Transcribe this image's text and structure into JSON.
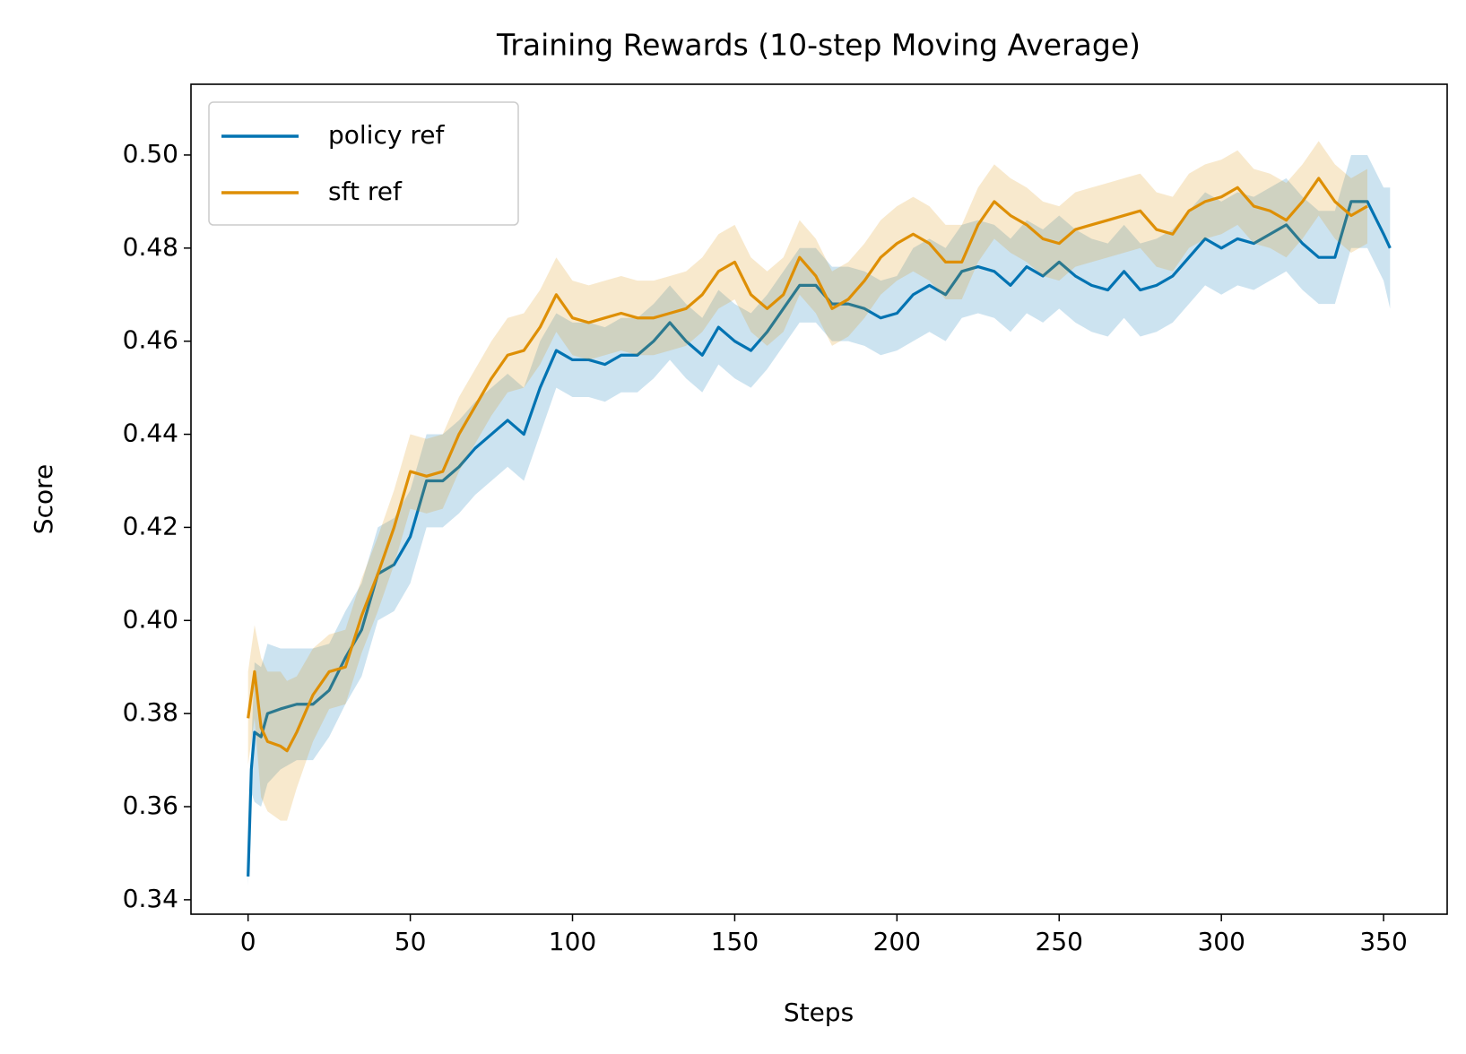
{
  "chart_data": {
    "type": "line",
    "title": "Training Rewards (10-step Moving Average)",
    "xlabel": "Steps",
    "ylabel": "Score",
    "xlim": [
      -17.6,
      369.6
    ],
    "ylim": [
      0.3369,
      0.5152
    ],
    "xticks": [
      0,
      50,
      100,
      150,
      200,
      250,
      300,
      350
    ],
    "yticks": [
      {
        "value": 0.34,
        "label": "0.34"
      },
      {
        "value": 0.36,
        "label": "0.36"
      },
      {
        "value": 0.38,
        "label": "0.38"
      },
      {
        "value": 0.4,
        "label": "0.40"
      },
      {
        "value": 0.42,
        "label": "0.42"
      },
      {
        "value": 0.44,
        "label": "0.44"
      },
      {
        "value": 0.46,
        "label": "0.46"
      },
      {
        "value": 0.48,
        "label": "0.48"
      },
      {
        "value": 0.5,
        "label": "0.50"
      }
    ],
    "grid": false,
    "legend": "upper left",
    "series": [
      {
        "name": "policy ref",
        "color": "#0173b2",
        "x": [
          0,
          1,
          2,
          4,
          6,
          10,
          15,
          20,
          25,
          30,
          35,
          40,
          45,
          50,
          55,
          60,
          65,
          70,
          75,
          80,
          85,
          90,
          95,
          100,
          105,
          110,
          115,
          120,
          125,
          130,
          135,
          140,
          145,
          150,
          155,
          160,
          165,
          170,
          175,
          180,
          185,
          190,
          195,
          200,
          205,
          210,
          215,
          220,
          225,
          230,
          235,
          240,
          245,
          250,
          255,
          260,
          265,
          270,
          275,
          280,
          285,
          290,
          295,
          300,
          305,
          310,
          315,
          320,
          325,
          330,
          335,
          340,
          345,
          350,
          352
        ],
        "values": [
          0.345,
          0.368,
          0.376,
          0.375,
          0.38,
          0.381,
          0.382,
          0.382,
          0.385,
          0.392,
          0.398,
          0.41,
          0.412,
          0.418,
          0.43,
          0.43,
          0.433,
          0.437,
          0.44,
          0.443,
          0.44,
          0.45,
          0.458,
          0.456,
          0.456,
          0.455,
          0.457,
          0.457,
          0.46,
          0.464,
          0.46,
          0.457,
          0.463,
          0.46,
          0.458,
          0.462,
          0.467,
          0.472,
          0.472,
          0.468,
          0.468,
          0.467,
          0.465,
          0.466,
          0.47,
          0.472,
          0.47,
          0.475,
          0.476,
          0.475,
          0.472,
          0.476,
          0.474,
          0.477,
          0.474,
          0.472,
          0.471,
          0.475,
          0.471,
          0.472,
          0.474,
          0.478,
          0.482,
          0.48,
          0.482,
          0.481,
          0.483,
          0.485,
          0.481,
          0.478,
          0.478,
          0.49,
          0.49,
          0.483,
          0.48
        ],
        "error": [
          0.002,
          0.005,
          0.015,
          0.015,
          0.015,
          0.013,
          0.012,
          0.012,
          0.01,
          0.01,
          0.01,
          0.01,
          0.01,
          0.01,
          0.01,
          0.01,
          0.01,
          0.01,
          0.01,
          0.01,
          0.01,
          0.01,
          0.008,
          0.008,
          0.008,
          0.008,
          0.008,
          0.008,
          0.008,
          0.008,
          0.008,
          0.008,
          0.008,
          0.008,
          0.008,
          0.008,
          0.008,
          0.008,
          0.008,
          0.008,
          0.008,
          0.008,
          0.008,
          0.008,
          0.01,
          0.01,
          0.01,
          0.01,
          0.01,
          0.01,
          0.01,
          0.01,
          0.01,
          0.01,
          0.01,
          0.01,
          0.01,
          0.01,
          0.01,
          0.01,
          0.01,
          0.01,
          0.01,
          0.01,
          0.01,
          0.01,
          0.01,
          0.01,
          0.01,
          0.01,
          0.01,
          0.01,
          0.01,
          0.01,
          0.013
        ]
      },
      {
        "name": "sft ref",
        "color": "#de8f05",
        "x": [
          0,
          2,
          4,
          6,
          10,
          12,
          15,
          20,
          25,
          30,
          35,
          40,
          45,
          50,
          55,
          60,
          65,
          70,
          75,
          80,
          85,
          90,
          95,
          100,
          105,
          110,
          115,
          120,
          125,
          130,
          135,
          140,
          145,
          150,
          155,
          160,
          165,
          170,
          175,
          180,
          185,
          190,
          195,
          200,
          205,
          210,
          215,
          220,
          225,
          230,
          235,
          240,
          245,
          250,
          255,
          260,
          265,
          270,
          275,
          280,
          285,
          290,
          295,
          300,
          305,
          310,
          315,
          320,
          325,
          330,
          335,
          340,
          345
        ],
        "values": [
          0.379,
          0.389,
          0.377,
          0.374,
          0.373,
          0.372,
          0.376,
          0.384,
          0.389,
          0.39,
          0.401,
          0.41,
          0.42,
          0.432,
          0.431,
          0.432,
          0.44,
          0.446,
          0.452,
          0.457,
          0.458,
          0.463,
          0.47,
          0.465,
          0.464,
          0.465,
          0.466,
          0.465,
          0.465,
          0.466,
          0.467,
          0.47,
          0.475,
          0.477,
          0.47,
          0.467,
          0.47,
          0.478,
          0.474,
          0.467,
          0.469,
          0.473,
          0.478,
          0.481,
          0.483,
          0.481,
          0.477,
          0.477,
          0.485,
          0.49,
          0.487,
          0.485,
          0.482,
          0.481,
          0.484,
          0.485,
          0.486,
          0.487,
          0.488,
          0.484,
          0.483,
          0.488,
          0.49,
          0.491,
          0.493,
          0.489,
          0.488,
          0.486,
          0.49,
          0.495,
          0.49,
          0.487,
          0.489
        ],
        "error": [
          0.01,
          0.01,
          0.015,
          0.015,
          0.016,
          0.015,
          0.012,
          0.01,
          0.008,
          0.008,
          0.008,
          0.008,
          0.008,
          0.008,
          0.008,
          0.008,
          0.008,
          0.008,
          0.008,
          0.008,
          0.008,
          0.008,
          0.008,
          0.008,
          0.008,
          0.008,
          0.008,
          0.008,
          0.008,
          0.008,
          0.008,
          0.008,
          0.008,
          0.008,
          0.008,
          0.008,
          0.008,
          0.008,
          0.008,
          0.008,
          0.008,
          0.008,
          0.008,
          0.008,
          0.008,
          0.008,
          0.008,
          0.008,
          0.008,
          0.008,
          0.008,
          0.008,
          0.008,
          0.008,
          0.008,
          0.008,
          0.008,
          0.008,
          0.008,
          0.008,
          0.008,
          0.008,
          0.008,
          0.008,
          0.008,
          0.008,
          0.008,
          0.008,
          0.008,
          0.008,
          0.008,
          0.008,
          0.008
        ]
      }
    ]
  }
}
